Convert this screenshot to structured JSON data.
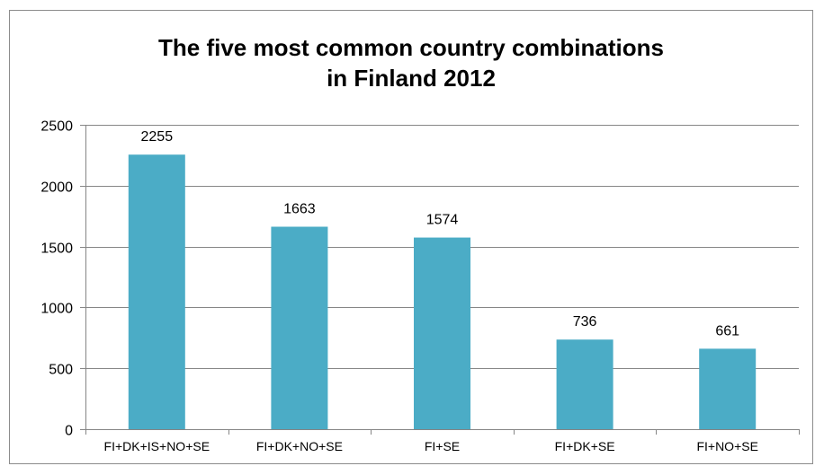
{
  "chart_data": {
    "type": "bar",
    "title_lines": [
      "The five most common country combinations",
      "in Finland 2012"
    ],
    "categories": [
      "FI+DK+IS+NO+SE",
      "FI+DK+NO+SE",
      "FI+SE",
      "FI+DK+SE",
      "FI+NO+SE"
    ],
    "values": [
      2255,
      1663,
      1574,
      736,
      661
    ],
    "data_labels": [
      "2255",
      "1663",
      "1574",
      "736",
      "661"
    ],
    "ylim": [
      0,
      2500
    ],
    "yticks": [
      0,
      500,
      1000,
      1500,
      2000,
      2500
    ],
    "ytick_labels": [
      "0",
      "500",
      "1000",
      "1500",
      "2000",
      "2500"
    ],
    "grid": true,
    "legend": "none",
    "bar_color": "#4bacc6",
    "grid_color": "#868686"
  }
}
